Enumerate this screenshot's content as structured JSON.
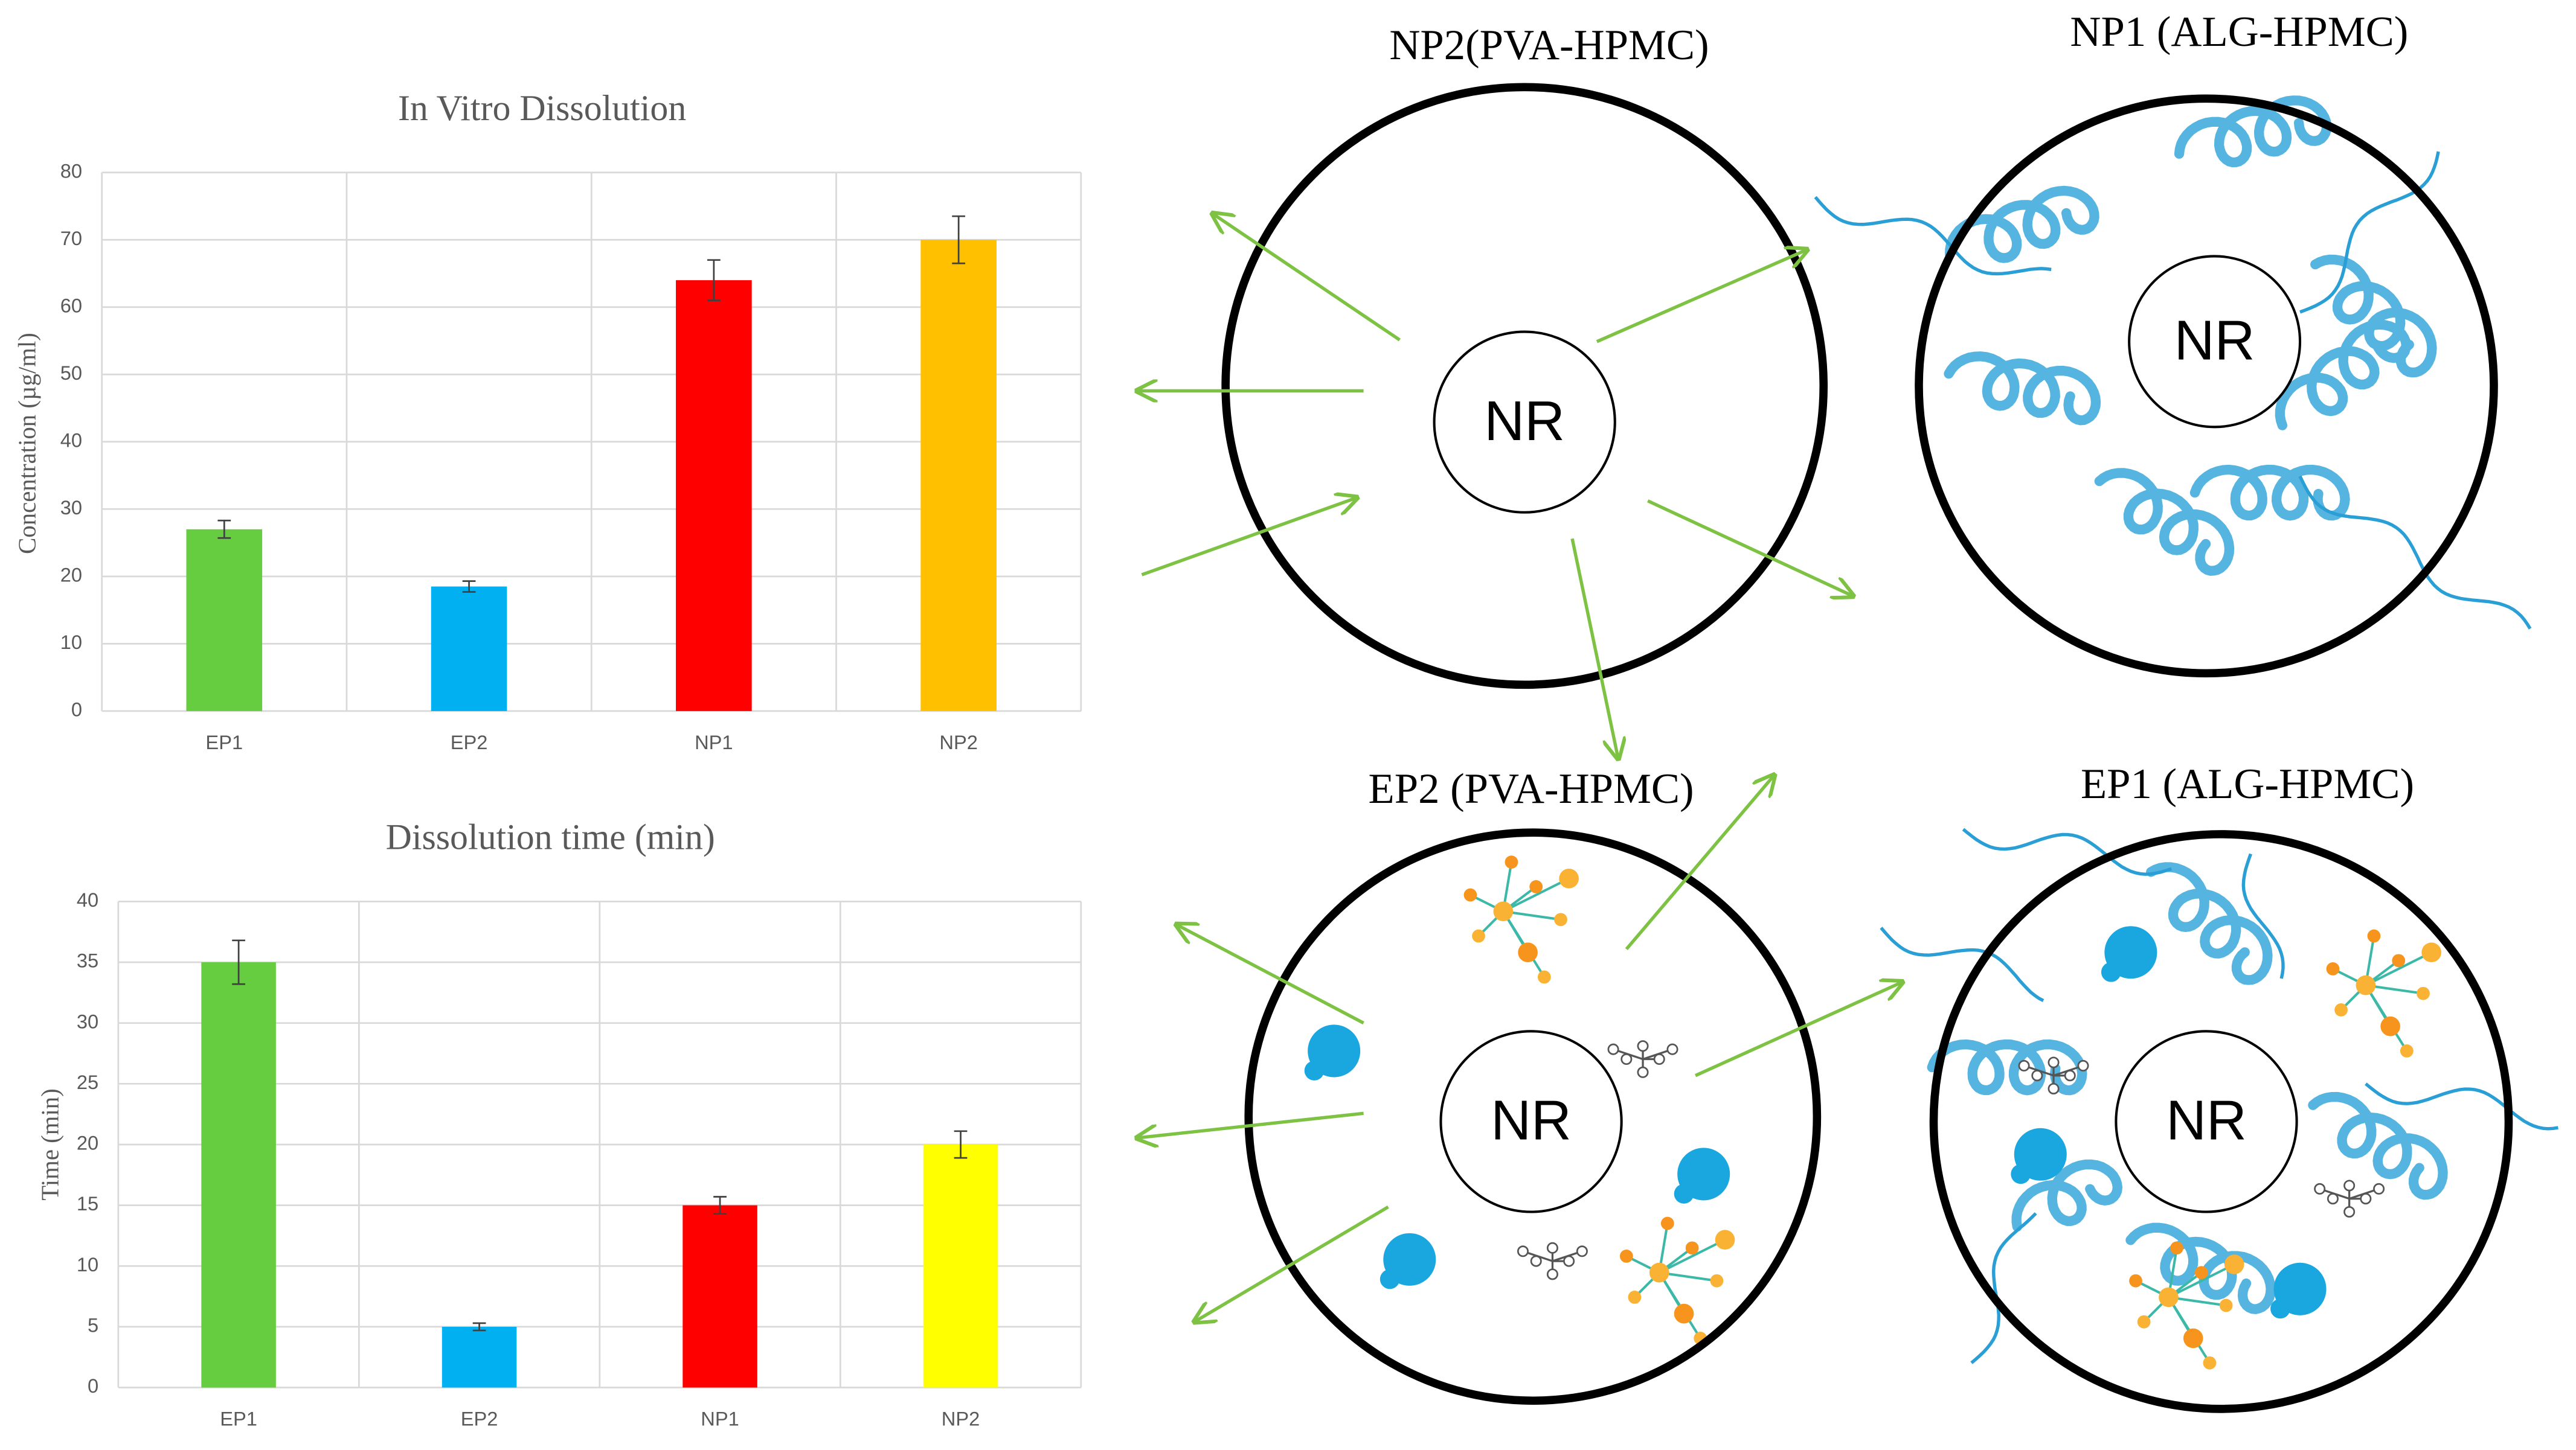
{
  "chart_data": [
    {
      "type": "bar",
      "title": "In Vitro Dissolution",
      "y_label": "Concentration (µg/ml)",
      "categories": [
        "EP1",
        "EP2",
        "NP1",
        "NP2"
      ],
      "values": [
        27,
        18.5,
        64,
        70
      ],
      "errors": [
        1.3,
        0.8,
        3,
        3.5
      ],
      "colors": [
        "#66cc40",
        "#00b0f0",
        "#ff0000",
        "#ffc000"
      ],
      "ylim": [
        0,
        80
      ],
      "yticks": [
        0,
        10,
        20,
        30,
        40,
        50,
        60,
        70,
        80
      ],
      "grid": true
    },
    {
      "type": "bar",
      "title": "Dissolution time (min)",
      "y_label": "Time (min)",
      "categories": [
        "EP1",
        "EP2",
        "NP1",
        "NP2"
      ],
      "values": [
        35,
        5,
        15,
        20
      ],
      "errors": [
        1.8,
        0.3,
        0.7,
        1.1
      ],
      "colors": [
        "#66cc40",
        "#00b0f0",
        "#ff0000",
        "#ffff00"
      ],
      "ylim": [
        0,
        40
      ],
      "yticks": [
        0,
        5,
        10,
        15,
        20,
        25,
        30,
        35,
        40
      ],
      "grid": true
    }
  ],
  "diagram": {
    "panels": [
      {
        "title": "NP2(PVA-HPMC)",
        "core": "NR"
      },
      {
        "title": "NP1 (ALG-HPMC)",
        "core": "NR"
      },
      {
        "title": "EP2 (PVA-HPMC)",
        "core": "NR"
      },
      {
        "title": "EP1 (ALG-HPMC)",
        "core": "NR"
      }
    ]
  }
}
